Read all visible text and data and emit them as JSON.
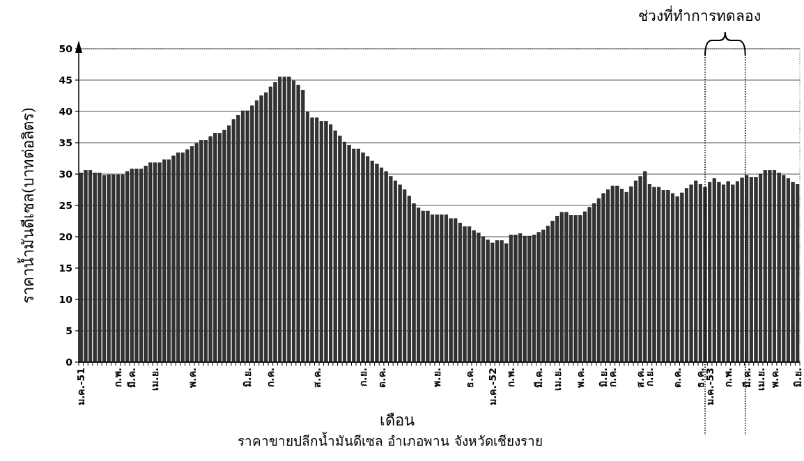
{
  "chart_data": {
    "type": "bar",
    "ylabel": "ราคาน้ำมันดีเซล(บาทต่อลิตร)",
    "xlabel": "เดือน",
    "annotations": [
      "ช่วงที่ทำการทดลอง",
      "ราคาขายปลีกน้ำมันดีเซล อำเภอพาน จังหวัดเชียงราย"
    ],
    "categories": [
      "ม.ค.-51",
      null,
      null,
      null,
      null,
      null,
      null,
      null,
      "ก.พ.",
      null,
      null,
      "มี.ค.",
      null,
      null,
      null,
      null,
      "เม.ย.",
      null,
      null,
      null,
      null,
      null,
      null,
      null,
      "พ.ค.",
      null,
      null,
      null,
      null,
      null,
      null,
      null,
      null,
      null,
      null,
      null,
      "มิ.ย.",
      null,
      null,
      null,
      null,
      "ก.ค.",
      null,
      null,
      null,
      null,
      null,
      null,
      null,
      null,
      null,
      "ส.ค.",
      null,
      null,
      null,
      null,
      null,
      null,
      null,
      null,
      null,
      "ก.ย.",
      null,
      null,
      null,
      "ต.ค.",
      null,
      null,
      null,
      null,
      null,
      null,
      null,
      null,
      null,
      null,
      null,
      "พ.ย.",
      null,
      null,
      null,
      null,
      null,
      null,
      "ธ.ค.",
      null,
      null,
      null,
      null,
      "ม.ค.-52",
      null,
      null,
      null,
      "ก.พ.",
      null,
      null,
      null,
      null,
      null,
      "มี.ค.",
      null,
      null,
      null,
      "เม.ย.",
      null,
      null,
      null,
      null,
      "พ.ค.",
      null,
      null,
      null,
      null,
      "มิ.ย.",
      null,
      "ก.ค.",
      null,
      null,
      null,
      null,
      null,
      "ส.ค.",
      null,
      "ก.ย.",
      null,
      null,
      null,
      null,
      null,
      "ต.ค.",
      null,
      null,
      null,
      null,
      "ธ.ค.",
      null,
      "ม.ค.-53",
      null,
      null,
      null,
      "ก.พ.",
      null,
      null,
      null,
      "มี.ค.",
      null,
      null,
      "เม.ย.",
      null,
      null,
      "พ.ค.",
      null,
      null,
      null,
      null,
      "มิ.ย."
    ],
    "values": [
      30.2,
      30.6,
      30.6,
      30.2,
      30.2,
      29.8,
      29.9,
      29.9,
      29.9,
      29.9,
      30.4,
      30.8,
      30.8,
      30.8,
      31.3,
      31.8,
      31.8,
      31.8,
      32.3,
      32.3,
      32.9,
      33.4,
      33.4,
      33.9,
      34.4,
      34.9,
      35.4,
      35.4,
      36.0,
      36.5,
      36.5,
      37.0,
      37.7,
      38.7,
      39.4,
      40.1,
      40.1,
      40.9,
      41.7,
      42.5,
      43.0,
      43.9,
      44.6,
      45.5,
      45.5,
      45.5,
      44.9,
      44.2,
      43.4,
      39.9,
      39.0,
      39.0,
      38.4,
      38.4,
      37.9,
      36.9,
      36.1,
      35.1,
      34.6,
      34.0,
      34.0,
      33.4,
      32.8,
      32.1,
      31.6,
      31.0,
      30.4,
      29.6,
      28.9,
      28.3,
      27.5,
      26.5,
      25.3,
      24.6,
      24.1,
      24.1,
      23.5,
      23.5,
      23.5,
      23.5,
      22.9,
      22.9,
      22.2,
      21.6,
      21.6,
      21.0,
      20.6,
      20.0,
      19.5,
      19.0,
      19.4,
      19.4,
      18.9,
      20.3,
      20.3,
      20.5,
      20.1,
      20.1,
      20.3,
      20.7,
      21.1,
      21.7,
      22.5,
      23.3,
      23.9,
      23.9,
      23.4,
      23.4,
      23.4,
      24.0,
      24.7,
      25.3,
      26.1,
      26.9,
      27.5,
      28.1,
      28.1,
      27.6,
      27.1,
      28.0,
      28.9,
      29.6,
      30.4,
      28.4,
      27.9,
      27.9,
      27.4,
      27.4,
      26.9,
      26.4,
      27.0,
      27.7,
      28.3,
      28.9,
      28.4,
      27.9,
      28.7,
      29.3,
      28.7,
      28.3,
      28.8,
      28.3,
      28.8,
      29.4,
      29.8,
      29.5,
      29.5,
      30.0,
      30.6,
      30.6,
      30.6,
      30.2,
      29.8,
      29.3,
      28.7,
      28.4
    ],
    "color": "#333333",
    "ylim": [
      0,
      50
    ],
    "yticks": [
      0,
      5,
      10,
      15,
      20,
      25,
      30,
      35,
      40,
      45,
      50
    ],
    "grid": "y"
  }
}
